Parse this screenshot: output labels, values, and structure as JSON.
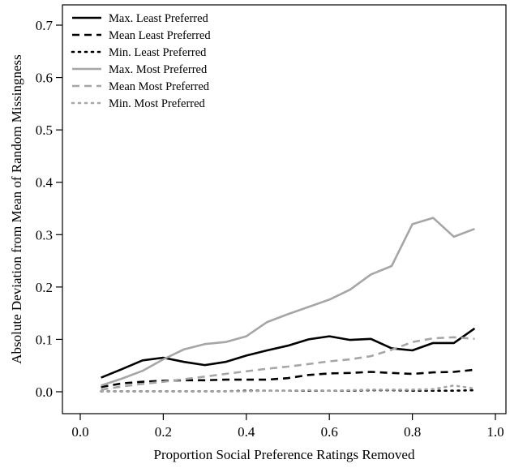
{
  "chart_data": {
    "type": "line",
    "xlabel": "Proportion Social Preference Ratings Removed",
    "ylabel": "Absolute Deviation from Mean of Random Missingness",
    "xlim": [
      0.0,
      1.0
    ],
    "ylim": [
      0.0,
      0.7
    ],
    "x_ticks": [
      "0.0",
      "0.2",
      "0.4",
      "0.6",
      "0.8",
      "1.0"
    ],
    "y_ticks": [
      "0.0",
      "0.1",
      "0.2",
      "0.3",
      "0.4",
      "0.5",
      "0.6",
      "0.7"
    ],
    "grid": false,
    "legend_position": "top-left",
    "x": [
      0.05,
      0.1,
      0.15,
      0.2,
      0.25,
      0.3,
      0.35,
      0.4,
      0.45,
      0.5,
      0.55,
      0.6,
      0.65,
      0.7,
      0.75,
      0.8,
      0.85,
      0.9,
      0.95
    ],
    "series": [
      {
        "name": "Max. Least Preferred",
        "color": "#000000",
        "dash": "solid",
        "values": [
          0.027,
          0.043,
          0.06,
          0.065,
          0.057,
          0.051,
          0.057,
          0.069,
          0.079,
          0.088,
          0.1,
          0.106,
          0.099,
          0.101,
          0.083,
          0.079,
          0.093,
          0.093,
          0.121
        ]
      },
      {
        "name": "Mean Least Preferred",
        "color": "#000000",
        "dash": "dashed",
        "values": [
          0.009,
          0.016,
          0.019,
          0.021,
          0.022,
          0.022,
          0.023,
          0.023,
          0.023,
          0.026,
          0.032,
          0.035,
          0.036,
          0.038,
          0.036,
          0.034,
          0.037,
          0.038,
          0.042
        ]
      },
      {
        "name": "Min. Least Preferred",
        "color": "#000000",
        "dash": "dotted",
        "values": [
          0.001,
          0.001,
          0.001,
          0.001,
          0.001,
          0.001,
          0.001,
          0.002,
          0.002,
          0.002,
          0.002,
          0.002,
          0.002,
          0.003,
          0.003,
          0.002,
          0.002,
          0.002,
          0.003
        ]
      },
      {
        "name": "Max. Most Preferred",
        "color": "#a6a6a6",
        "dash": "solid",
        "values": [
          0.012,
          0.025,
          0.04,
          0.062,
          0.081,
          0.091,
          0.095,
          0.106,
          0.133,
          0.148,
          0.162,
          0.176,
          0.195,
          0.224,
          0.24,
          0.32,
          0.332,
          0.296,
          0.311
        ]
      },
      {
        "name": "Mean Most Preferred",
        "color": "#a6a6a6",
        "dash": "dashed",
        "values": [
          0.004,
          0.01,
          0.015,
          0.019,
          0.024,
          0.029,
          0.034,
          0.039,
          0.044,
          0.048,
          0.053,
          0.058,
          0.062,
          0.068,
          0.08,
          0.095,
          0.102,
          0.104,
          0.101
        ]
      },
      {
        "name": "Min. Most Preferred",
        "color": "#a6a6a6",
        "dash": "dotted",
        "values": [
          0.001,
          0.001,
          0.001,
          0.001,
          0.001,
          0.001,
          0.001,
          0.001,
          0.002,
          0.002,
          0.003,
          0.002,
          0.003,
          0.004,
          0.004,
          0.004,
          0.005,
          0.012,
          0.006
        ]
      }
    ]
  }
}
